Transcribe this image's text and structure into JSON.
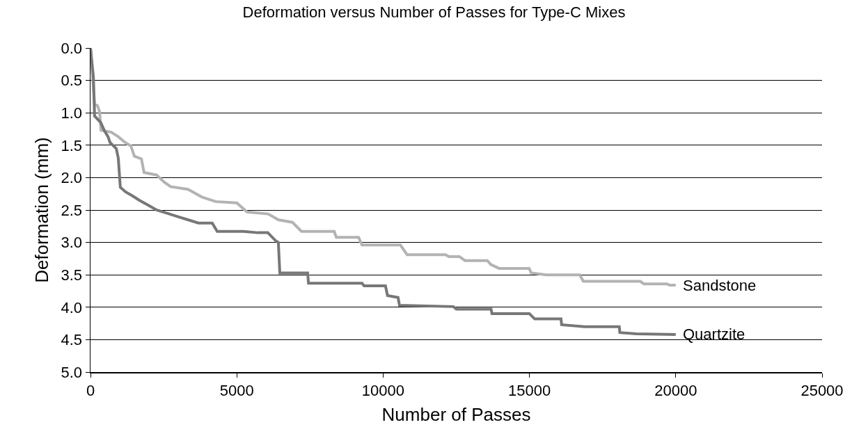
{
  "chart_data": {
    "type": "line",
    "title": "Deformation versus Number of Passes for Type-C Mixes",
    "xlabel": "Number of Passes",
    "ylabel": "Deformation (mm)",
    "xlim": [
      0,
      25000
    ],
    "xticks": [
      0,
      5000,
      10000,
      15000,
      20000,
      25000
    ],
    "ylim": [
      5,
      0
    ],
    "yticks": [
      {
        "value": 0,
        "label": "0.0"
      },
      {
        "value": 0.5,
        "label": "0.5"
      },
      {
        "value": 1,
        "label": "1.0"
      },
      {
        "value": 1.5,
        "label": "1.5"
      },
      {
        "value": 2,
        "label": "2.0"
      },
      {
        "value": 2.5,
        "label": "2.5"
      },
      {
        "value": 3,
        "label": "3.0"
      },
      {
        "value": 3.5,
        "label": "3.5"
      },
      {
        "value": 4,
        "label": "4.0"
      },
      {
        "value": 4.5,
        "label": "4.5"
      },
      {
        "value": 5,
        "label": "5.0"
      }
    ],
    "grid": "y",
    "legend": false,
    "marker": "none",
    "line_style": "solid",
    "series": [
      {
        "name": "Sandstone",
        "color": "#b3b3b3",
        "x": [
          0,
          140,
          240,
          310,
          360,
          710,
          950,
          1190,
          1380,
          1500,
          1740,
          1830,
          2260,
          2520,
          2740,
          3330,
          3810,
          4280,
          5000,
          5350,
          6070,
          6420,
          6900,
          7210,
          8330,
          8400,
          9160,
          9280,
          10590,
          10820,
          12130,
          12250,
          12610,
          12800,
          13560,
          13680,
          13960,
          14990,
          15060,
          15580,
          16720,
          16840,
          18790,
          18910,
          19700,
          19790,
          20000
        ],
        "values": [
          0,
          0.87,
          0.89,
          0.98,
          1.27,
          1.3,
          1.37,
          1.46,
          1.51,
          1.67,
          1.71,
          1.92,
          1.96,
          2.07,
          2.14,
          2.18,
          2.3,
          2.37,
          2.39,
          2.53,
          2.56,
          2.65,
          2.69,
          2.83,
          2.83,
          2.92,
          2.92,
          3.04,
          3.04,
          3.19,
          3.19,
          3.22,
          3.22,
          3.28,
          3.28,
          3.34,
          3.4,
          3.4,
          3.47,
          3.5,
          3.5,
          3.6,
          3.6,
          3.64,
          3.64,
          3.66,
          3.66
        ]
      },
      {
        "name": "Quartzite",
        "color": "#777777",
        "x": [
          0,
          100,
          140,
          350,
          480,
          600,
          670,
          880,
          950,
          1020,
          1200,
          1430,
          1670,
          1950,
          2260,
          2620,
          2970,
          3330,
          3690,
          4160,
          4330,
          5230,
          5710,
          6060,
          6320,
          6420,
          6470,
          7420,
          7450,
          9280,
          9350,
          10080,
          10150,
          10510,
          10560,
          12400,
          12500,
          13690,
          13720,
          15000,
          15180,
          16080,
          16100,
          16880,
          18070,
          18090,
          18650,
          20000
        ],
        "values": [
          0,
          0.45,
          1.05,
          1.15,
          1.28,
          1.37,
          1.46,
          1.55,
          1.7,
          2.15,
          2.22,
          2.28,
          2.35,
          2.42,
          2.5,
          2.55,
          2.6,
          2.65,
          2.7,
          2.7,
          2.83,
          2.83,
          2.85,
          2.85,
          2.97,
          3.0,
          3.47,
          3.47,
          3.63,
          3.63,
          3.67,
          3.67,
          3.82,
          3.85,
          3.97,
          3.99,
          4.03,
          4.03,
          4.1,
          4.1,
          4.18,
          4.18,
          4.27,
          4.3,
          4.3,
          4.39,
          4.41,
          4.42
        ]
      }
    ]
  }
}
